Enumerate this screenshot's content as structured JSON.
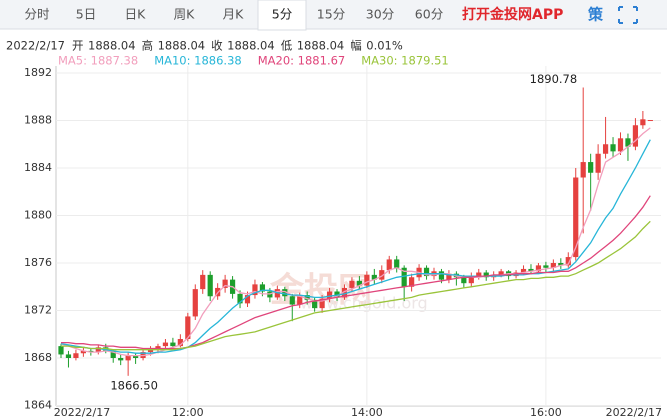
{
  "tabs": [
    "分时",
    "5日",
    "日K",
    "周K",
    "月K",
    "5分",
    "15分",
    "30分",
    "60分"
  ],
  "selected_tab": 5,
  "app_link": "打开金投网APP",
  "strategy": "策",
  "info": {
    "date": "2022/2/17",
    "fields": [
      {
        "label": "开",
        "value": 1888.04
      },
      {
        "label": "高",
        "value": 1888.04
      },
      {
        "label": "收",
        "value": 1888.04
      },
      {
        "label": "低",
        "value": 1888.04
      },
      {
        "label": "幅",
        "value": "0.01%"
      }
    ]
  },
  "watermark": "金投网",
  "watermark_url": "www.cngold.org",
  "chart_data": {
    "type": "candlestick",
    "categories": [
      "2022/2/17",
      null,
      null,
      null,
      null,
      null,
      null,
      null,
      null,
      null,
      null,
      null,
      null,
      null,
      null,
      null,
      null,
      "12:00",
      null,
      null,
      null,
      null,
      null,
      null,
      null,
      null,
      null,
      null,
      null,
      null,
      null,
      null,
      null,
      null,
      null,
      null,
      null,
      null,
      null,
      null,
      null,
      "14:00",
      null,
      null,
      null,
      null,
      null,
      null,
      null,
      null,
      null,
      null,
      null,
      null,
      null,
      null,
      null,
      null,
      null,
      null,
      null,
      null,
      null,
      null,
      null,
      "16:00",
      null,
      null,
      null,
      null,
      null,
      null,
      null,
      null,
      null,
      null,
      null,
      null,
      null,
      "2022/2/17"
    ],
    "open": [
      1869.0,
      1868.3,
      1868.0,
      1868.4,
      1868.6,
      1868.5,
      1868.9,
      1868.6,
      1868.0,
      1867.8,
      1868.2,
      1868.0,
      1868.5,
      1868.7,
      1869.0,
      1869.3,
      1869.0,
      1869.6,
      1871.5,
      1873.8,
      1875.0,
      1873.2,
      1873.9,
      1874.6,
      1873.4,
      1872.6,
      1873.3,
      1874.2,
      1873.6,
      1873.1,
      1873.8,
      1873.2,
      1872.5,
      1873.3,
      1872.9,
      1872.2,
      1873.0,
      1873.6,
      1873.1,
      1873.9,
      1874.5,
      1874.1,
      1875.0,
      1874.6,
      1875.4,
      1876.3,
      1875.6,
      1874.0,
      1874.8,
      1875.6,
      1874.9,
      1875.3,
      1874.6,
      1875.1,
      1874.8,
      1874.3,
      1874.9,
      1875.2,
      1874.8,
      1875.0,
      1875.3,
      1874.9,
      1875.2,
      1875.5,
      1875.3,
      1875.8,
      1875.6,
      1876.0,
      1875.8,
      1876.5,
      1883.2,
      1884.5,
      1883.6,
      1885.2,
      1886.0,
      1885.4,
      1886.5,
      1885.8,
      1887.6,
      1888.04
    ],
    "high": [
      1869.2,
      1868.6,
      1868.7,
      1868.9,
      1868.8,
      1869.1,
      1869.2,
      1868.7,
      1868.3,
      1868.5,
      1868.4,
      1868.7,
      1869.0,
      1869.2,
      1869.6,
      1869.7,
      1870.0,
      1871.8,
      1874.2,
      1875.4,
      1875.3,
      1874.3,
      1875.0,
      1874.9,
      1873.7,
      1873.6,
      1874.6,
      1874.4,
      1873.9,
      1874.1,
      1874.0,
      1873.4,
      1873.5,
      1873.6,
      1873.1,
      1873.3,
      1873.9,
      1873.8,
      1874.2,
      1874.8,
      1874.9,
      1875.3,
      1875.5,
      1875.8,
      1876.6,
      1876.6,
      1875.8,
      1875.1,
      1875.9,
      1875.8,
      1875.6,
      1875.5,
      1875.4,
      1875.3,
      1875.0,
      1875.2,
      1875.5,
      1875.4,
      1875.3,
      1875.5,
      1875.4,
      1875.4,
      1875.8,
      1875.9,
      1876.0,
      1876.1,
      1876.3,
      1876.4,
      1876.9,
      1884.0,
      1890.78,
      1885.2,
      1886.0,
      1888.3,
      1886.6,
      1887.0,
      1886.9,
      1888.2,
      1888.8,
      1888.04
    ],
    "low": [
      1868.0,
      1867.2,
      1867.8,
      1868.1,
      1868.2,
      1868.3,
      1868.4,
      1867.6,
      1867.4,
      1866.5,
      1867.5,
      1867.8,
      1868.2,
      1868.4,
      1868.7,
      1868.8,
      1868.9,
      1869.4,
      1871.2,
      1873.4,
      1872.8,
      1872.9,
      1873.5,
      1873.0,
      1872.2,
      1872.3,
      1873.0,
      1873.2,
      1872.7,
      1872.9,
      1872.8,
      1871.1,
      1872.2,
      1872.5,
      1871.9,
      1871.8,
      1872.7,
      1872.8,
      1872.9,
      1873.6,
      1873.8,
      1873.9,
      1874.2,
      1874.3,
      1875.1,
      1875.2,
      1872.8,
      1873.6,
      1874.5,
      1874.6,
      1874.6,
      1874.3,
      1874.3,
      1874.1,
      1873.9,
      1874.0,
      1874.6,
      1874.5,
      1874.5,
      1874.8,
      1874.6,
      1874.7,
      1875.0,
      1875.1,
      1875.1,
      1875.2,
      1875.3,
      1875.5,
      1875.6,
      1876.2,
      1878.5,
      1880.4,
      1883.0,
      1884.8,
      1884.9,
      1885.1,
      1884.6,
      1885.5,
      1887.3,
      1888.04
    ],
    "close": [
      1868.3,
      1868.0,
      1868.4,
      1868.6,
      1868.5,
      1868.9,
      1868.6,
      1868.0,
      1867.8,
      1868.2,
      1868.0,
      1868.5,
      1868.7,
      1869.0,
      1869.3,
      1869.0,
      1869.6,
      1871.5,
      1873.8,
      1875.0,
      1873.2,
      1873.9,
      1874.6,
      1873.4,
      1872.6,
      1873.3,
      1874.2,
      1873.6,
      1873.1,
      1873.8,
      1873.2,
      1872.5,
      1873.3,
      1872.9,
      1872.2,
      1873.0,
      1873.6,
      1873.1,
      1873.9,
      1874.5,
      1874.1,
      1875.0,
      1874.6,
      1875.4,
      1876.3,
      1875.6,
      1874.0,
      1874.8,
      1875.6,
      1874.9,
      1875.3,
      1874.6,
      1875.1,
      1874.8,
      1874.3,
      1874.9,
      1875.2,
      1874.8,
      1875.0,
      1875.3,
      1874.9,
      1875.2,
      1875.5,
      1875.3,
      1875.8,
      1875.6,
      1876.0,
      1875.8,
      1876.5,
      1883.2,
      1884.5,
      1883.6,
      1885.2,
      1886.0,
      1885.4,
      1886.5,
      1885.8,
      1887.6,
      1888.1,
      1888.04
    ],
    "up_color": "#e5413f",
    "down_color": "#1d9e2c",
    "series": [
      {
        "name": "MA5",
        "label": "MA5: 1887.38",
        "color": "#f29fbd",
        "values": [
          1869.2,
          1869.0,
          1868.8,
          1868.6,
          1868.5,
          1868.5,
          1868.6,
          1868.5,
          1868.3,
          1868.2,
          1868.2,
          1868.2,
          1868.3,
          1868.5,
          1868.7,
          1868.9,
          1869.1,
          1869.7,
          1870.5,
          1871.7,
          1872.6,
          1873.5,
          1874.1,
          1874.0,
          1873.5,
          1873.4,
          1873.6,
          1873.4,
          1873.4,
          1873.6,
          1873.6,
          1873.3,
          1873.2,
          1873.0,
          1872.8,
          1872.8,
          1873.0,
          1873.2,
          1873.6,
          1873.8,
          1874.1,
          1874.4,
          1874.6,
          1874.9,
          1875.4,
          1875.6,
          1875.3,
          1875.3,
          1875.2,
          1875.0,
          1875.0,
          1875.1,
          1875.1,
          1874.9,
          1874.8,
          1874.8,
          1874.8,
          1874.9,
          1874.9,
          1875.0,
          1875.1,
          1875.1,
          1875.2,
          1875.3,
          1875.4,
          1875.5,
          1875.6,
          1875.8,
          1875.9,
          1877.3,
          1879.0,
          1880.5,
          1882.6,
          1884.5,
          1884.9,
          1885.3,
          1885.8,
          1886.3,
          1886.9,
          1887.38
        ]
      },
      {
        "name": "MA10",
        "label": "MA10: 1886.38",
        "color": "#27b6d8",
        "values": [
          1869.2,
          1869.1,
          1869.0,
          1868.9,
          1868.8,
          1868.8,
          1868.7,
          1868.6,
          1868.5,
          1868.5,
          1868.4,
          1868.4,
          1868.4,
          1868.5,
          1868.5,
          1868.6,
          1868.7,
          1868.9,
          1869.3,
          1869.9,
          1870.5,
          1871.0,
          1871.6,
          1872.2,
          1872.7,
          1873.2,
          1873.5,
          1873.7,
          1873.7,
          1873.5,
          1873.4,
          1873.3,
          1873.3,
          1873.2,
          1873.1,
          1873.1,
          1873.2,
          1873.3,
          1873.4,
          1873.6,
          1873.8,
          1874.0,
          1874.2,
          1874.4,
          1874.6,
          1874.8,
          1874.9,
          1875.0,
          1875.1,
          1875.1,
          1875.1,
          1875.1,
          1875.0,
          1875.0,
          1874.9,
          1874.9,
          1874.9,
          1874.9,
          1874.9,
          1874.9,
          1875.0,
          1875.0,
          1875.0,
          1875.1,
          1875.1,
          1875.2,
          1875.3,
          1875.4,
          1875.5,
          1876.1,
          1876.9,
          1877.7,
          1878.8,
          1879.8,
          1880.6,
          1881.8,
          1882.9,
          1884.0,
          1885.2,
          1886.38
        ]
      },
      {
        "name": "MA20",
        "label": "MA20: 1881.67",
        "color": "#e0457b",
        "values": [
          1869.3,
          1869.3,
          1869.2,
          1869.2,
          1869.1,
          1869.1,
          1869.0,
          1869.0,
          1868.9,
          1868.9,
          1868.9,
          1868.8,
          1868.8,
          1868.8,
          1868.8,
          1868.8,
          1868.8,
          1868.9,
          1869.1,
          1869.3,
          1869.6,
          1869.9,
          1870.2,
          1870.5,
          1870.8,
          1871.1,
          1871.4,
          1871.6,
          1871.8,
          1872.0,
          1872.2,
          1872.4,
          1872.5,
          1872.7,
          1872.8,
          1872.9,
          1873.0,
          1873.1,
          1873.2,
          1873.3,
          1873.4,
          1873.5,
          1873.6,
          1873.7,
          1873.8,
          1873.9,
          1874.0,
          1874.1,
          1874.2,
          1874.3,
          1874.4,
          1874.5,
          1874.6,
          1874.7,
          1874.8,
          1874.8,
          1874.9,
          1874.9,
          1875.0,
          1875.0,
          1875.0,
          1875.1,
          1875.1,
          1875.1,
          1875.2,
          1875.2,
          1875.2,
          1875.3,
          1875.3,
          1875.6,
          1876.0,
          1876.4,
          1876.9,
          1877.4,
          1877.9,
          1878.5,
          1879.2,
          1879.9,
          1880.7,
          1881.67
        ]
      },
      {
        "name": "MA30",
        "label": "MA30: 1879.51",
        "color": "#9ac43a",
        "values": [
          1869.0,
          1869.0,
          1868.9,
          1868.9,
          1868.8,
          1868.8,
          1868.8,
          1868.7,
          1868.7,
          1868.7,
          1868.7,
          1868.7,
          1868.7,
          1868.7,
          1868.7,
          1868.7,
          1868.8,
          1868.9,
          1869.0,
          1869.2,
          1869.4,
          1869.6,
          1869.8,
          1869.9,
          1870.0,
          1870.1,
          1870.2,
          1870.4,
          1870.6,
          1870.8,
          1871.0,
          1871.2,
          1871.4,
          1871.6,
          1871.8,
          1871.9,
          1872.0,
          1872.1,
          1872.2,
          1872.3,
          1872.4,
          1872.5,
          1872.6,
          1872.7,
          1872.8,
          1872.9,
          1873.0,
          1873.1,
          1873.3,
          1873.4,
          1873.5,
          1873.6,
          1873.7,
          1873.8,
          1873.9,
          1874.0,
          1874.1,
          1874.2,
          1874.3,
          1874.4,
          1874.5,
          1874.6,
          1874.6,
          1874.7,
          1874.7,
          1874.8,
          1874.8,
          1874.9,
          1874.9,
          1875.1,
          1875.4,
          1875.7,
          1876.0,
          1876.4,
          1876.8,
          1877.2,
          1877.7,
          1878.2,
          1878.9,
          1879.51
        ]
      }
    ],
    "high_label": "1890.78",
    "low_label": "1866.50",
    "ylim": [
      1864,
      1892
    ],
    "yticks": [
      1864,
      1868,
      1872,
      1876,
      1880,
      1884,
      1888,
      1892
    ],
    "grid": true
  }
}
